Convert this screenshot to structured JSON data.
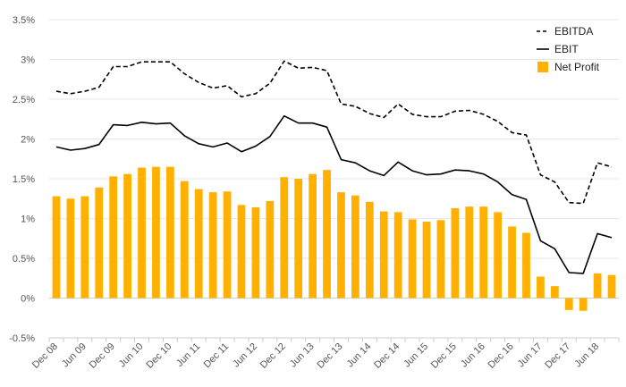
{
  "chart_data": {
    "type": "bar",
    "title": "",
    "xlabel": "",
    "ylabel": "",
    "ylim": [
      -0.005,
      0.035
    ],
    "yticks": [
      -0.005,
      0,
      0.005,
      0.01,
      0.015,
      0.02,
      0.025,
      0.03,
      0.035
    ],
    "ytick_labels": [
      "-0.5%",
      "0%",
      "0.5%",
      "1%",
      "1.5%",
      "2%",
      "2.5%",
      "3%",
      "3.5%"
    ],
    "grid": "horizontal",
    "legend_position": "top-right",
    "xtick_labels": [
      "Dec 08",
      "Jun 09",
      "Dec 09",
      "Jun 10",
      "Dec 10",
      "Jun 11",
      "Dec 11",
      "Jun 12",
      "Dec 12",
      "Jun 13",
      "Dec 13",
      "Jun 14",
      "Dec 14",
      "Jun 15",
      "Dec 15",
      "Jun 16",
      "Dec 16",
      "Jun 17",
      "Dec 17",
      "Jun 18"
    ],
    "series": [
      {
        "name": "EBITDA",
        "kind": "line-dashed",
        "color": "#000000",
        "values": [
          0.026,
          0.0257,
          0.026,
          0.0265,
          0.0291,
          0.0291,
          0.0297,
          0.0297,
          0.0297,
          0.0282,
          0.0271,
          0.0264,
          0.0267,
          0.0253,
          0.0257,
          0.027,
          0.0298,
          0.0289,
          0.029,
          0.0286,
          0.0244,
          0.0241,
          0.0232,
          0.0227,
          0.0244,
          0.0231,
          0.0228,
          0.0228,
          0.0235,
          0.0236,
          0.0231,
          0.0222,
          0.0208,
          0.0205,
          0.0155,
          0.0146,
          0.012,
          0.0119,
          0.017,
          0.0165
        ]
      },
      {
        "name": "EBIT",
        "kind": "line",
        "color": "#000000",
        "values": [
          0.019,
          0.0186,
          0.0188,
          0.0193,
          0.0218,
          0.0217,
          0.0221,
          0.0219,
          0.022,
          0.0204,
          0.0194,
          0.019,
          0.0195,
          0.0184,
          0.0191,
          0.0203,
          0.0229,
          0.022,
          0.022,
          0.0215,
          0.0174,
          0.017,
          0.016,
          0.0154,
          0.0171,
          0.016,
          0.0155,
          0.0156,
          0.0161,
          0.016,
          0.0156,
          0.0146,
          0.013,
          0.0124,
          0.0072,
          0.0062,
          0.0032,
          0.0031,
          0.0081,
          0.0076
        ]
      },
      {
        "name": "Net Profit",
        "kind": "bar",
        "color": "#FFB000",
        "values": [
          0.0128,
          0.0125,
          0.0128,
          0.0139,
          0.0153,
          0.0156,
          0.0164,
          0.0165,
          0.0165,
          0.0147,
          0.0137,
          0.0133,
          0.0134,
          0.0117,
          0.0114,
          0.0122,
          0.0152,
          0.015,
          0.0156,
          0.0161,
          0.0133,
          0.0129,
          0.0121,
          0.0109,
          0.0108,
          0.0099,
          0.0096,
          0.0098,
          0.0113,
          0.0115,
          0.0115,
          0.0108,
          0.009,
          0.0082,
          0.0027,
          0.0015,
          -0.0015,
          -0.0016,
          0.0031,
          0.0029
        ]
      }
    ]
  }
}
